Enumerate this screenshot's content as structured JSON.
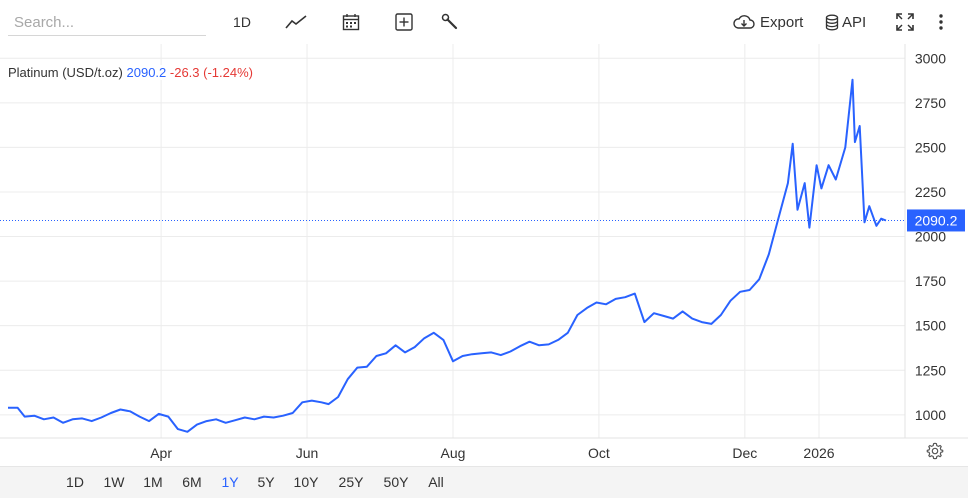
{
  "toolbar": {
    "search_placeholder": "Search...",
    "interval_label": "1D",
    "export_label": "Export",
    "api_label": "API",
    "icons": [
      "line-chart-icon",
      "calendar-icon",
      "add-icon",
      "wrench-icon",
      "cloud-download-icon",
      "database-icon",
      "fullscreen-icon",
      "more-vertical-icon"
    ]
  },
  "legend": {
    "symbol": "Platinum (USD/t.oz)",
    "last": "2090.2",
    "change": "-26.3 (-1.24%)"
  },
  "ranges": [
    "1D",
    "1W",
    "1M",
    "6M",
    "1Y",
    "5Y",
    "10Y",
    "25Y",
    "50Y",
    "All"
  ],
  "active_range": "1Y",
  "colors": {
    "line": "#2962ff",
    "price_label_bg": "#2962ff",
    "change_negative": "#e53935",
    "grid": "#ececec"
  },
  "chart_data": {
    "type": "line",
    "title": "Platinum (USD/t.oz)",
    "last_value": 2090.2,
    "ylim": [
      870,
      3080
    ],
    "y_ticks": [
      1000,
      1250,
      1500,
      1750,
      2000,
      2250,
      2500,
      2750,
      3000
    ],
    "y_tick_labels": [
      "1000",
      "1250",
      "1500",
      "1750",
      "2000",
      "2250",
      "2500",
      "2750",
      "3000"
    ],
    "x_ticks": [
      {
        "label": "Apr",
        "date": "2025-04-01"
      },
      {
        "label": "Jun",
        "date": "2025-06-01"
      },
      {
        "label": "Aug",
        "date": "2025-08-01"
      },
      {
        "label": "Oct",
        "date": "2025-10-01"
      },
      {
        "label": "Dec",
        "date": "2025-12-01"
      },
      {
        "label": "2026",
        "date": "2026-01-01"
      }
    ],
    "xlim": [
      "2025-01-27",
      "2026-01-29"
    ],
    "grid": true,
    "series": [
      {
        "values": [
          [
            "2025-01-27",
            1040
          ],
          [
            "2025-01-31",
            1040
          ],
          [
            "2025-02-03",
            990
          ],
          [
            "2025-02-07",
            995
          ],
          [
            "2025-02-11",
            975
          ],
          [
            "2025-02-15",
            985
          ],
          [
            "2025-02-19",
            955
          ],
          [
            "2025-02-23",
            975
          ],
          [
            "2025-02-27",
            980
          ],
          [
            "2025-03-03",
            965
          ],
          [
            "2025-03-07",
            985
          ],
          [
            "2025-03-11",
            1010
          ],
          [
            "2025-03-15",
            1030
          ],
          [
            "2025-03-19",
            1020
          ],
          [
            "2025-03-23",
            990
          ],
          [
            "2025-03-27",
            965
          ],
          [
            "2025-03-31",
            1005
          ],
          [
            "2025-04-04",
            990
          ],
          [
            "2025-04-08",
            920
          ],
          [
            "2025-04-12",
            905
          ],
          [
            "2025-04-16",
            945
          ],
          [
            "2025-04-20",
            965
          ],
          [
            "2025-04-24",
            975
          ],
          [
            "2025-04-28",
            955
          ],
          [
            "2025-05-02",
            970
          ],
          [
            "2025-05-06",
            985
          ],
          [
            "2025-05-10",
            975
          ],
          [
            "2025-05-14",
            990
          ],
          [
            "2025-05-18",
            985
          ],
          [
            "2025-05-22",
            995
          ],
          [
            "2025-05-26",
            1010
          ],
          [
            "2025-05-30",
            1070
          ],
          [
            "2025-06-03",
            1080
          ],
          [
            "2025-06-07",
            1070
          ],
          [
            "2025-06-10",
            1060
          ],
          [
            "2025-06-14",
            1100
          ],
          [
            "2025-06-18",
            1200
          ],
          [
            "2025-06-22",
            1265
          ],
          [
            "2025-06-26",
            1270
          ],
          [
            "2025-06-30",
            1330
          ],
          [
            "2025-07-04",
            1345
          ],
          [
            "2025-07-08",
            1390
          ],
          [
            "2025-07-12",
            1350
          ],
          [
            "2025-07-16",
            1380
          ],
          [
            "2025-07-20",
            1430
          ],
          [
            "2025-07-24",
            1460
          ],
          [
            "2025-07-28",
            1420
          ],
          [
            "2025-08-01",
            1300
          ],
          [
            "2025-08-05",
            1330
          ],
          [
            "2025-08-09",
            1340
          ],
          [
            "2025-08-13",
            1345
          ],
          [
            "2025-08-17",
            1350
          ],
          [
            "2025-08-21",
            1335
          ],
          [
            "2025-08-25",
            1355
          ],
          [
            "2025-08-29",
            1385
          ],
          [
            "2025-09-02",
            1410
          ],
          [
            "2025-09-06",
            1390
          ],
          [
            "2025-09-10",
            1395
          ],
          [
            "2025-09-14",
            1420
          ],
          [
            "2025-09-18",
            1460
          ],
          [
            "2025-09-22",
            1560
          ],
          [
            "2025-09-26",
            1600
          ],
          [
            "2025-09-30",
            1630
          ],
          [
            "2025-10-04",
            1620
          ],
          [
            "2025-10-08",
            1650
          ],
          [
            "2025-10-12",
            1660
          ],
          [
            "2025-10-16",
            1680
          ],
          [
            "2025-10-20",
            1520
          ],
          [
            "2025-10-24",
            1570
          ],
          [
            "2025-10-28",
            1555
          ],
          [
            "2025-11-01",
            1540
          ],
          [
            "2025-11-05",
            1580
          ],
          [
            "2025-11-09",
            1540
          ],
          [
            "2025-11-13",
            1520
          ],
          [
            "2025-11-17",
            1510
          ],
          [
            "2025-11-21",
            1560
          ],
          [
            "2025-11-25",
            1640
          ],
          [
            "2025-11-29",
            1690
          ],
          [
            "2025-12-03",
            1700
          ],
          [
            "2025-12-07",
            1760
          ],
          [
            "2025-12-11",
            1900
          ],
          [
            "2025-12-15",
            2100
          ],
          [
            "2025-12-19",
            2300
          ],
          [
            "2025-12-21",
            2520
          ],
          [
            "2025-12-23",
            2150
          ],
          [
            "2025-12-26",
            2300
          ],
          [
            "2025-12-28",
            2050
          ],
          [
            "2025-12-31",
            2400
          ],
          [
            "2026-01-02",
            2270
          ],
          [
            "2026-01-05",
            2400
          ],
          [
            "2026-01-08",
            2320
          ],
          [
            "2026-01-12",
            2500
          ],
          [
            "2026-01-15",
            2880
          ],
          [
            "2026-01-16",
            2530
          ],
          [
            "2026-01-18",
            2620
          ],
          [
            "2026-01-20",
            2080
          ],
          [
            "2026-01-22",
            2170
          ],
          [
            "2026-01-25",
            2060
          ],
          [
            "2026-01-27",
            2100
          ],
          [
            "2026-01-29",
            2090.2
          ]
        ]
      }
    ]
  }
}
